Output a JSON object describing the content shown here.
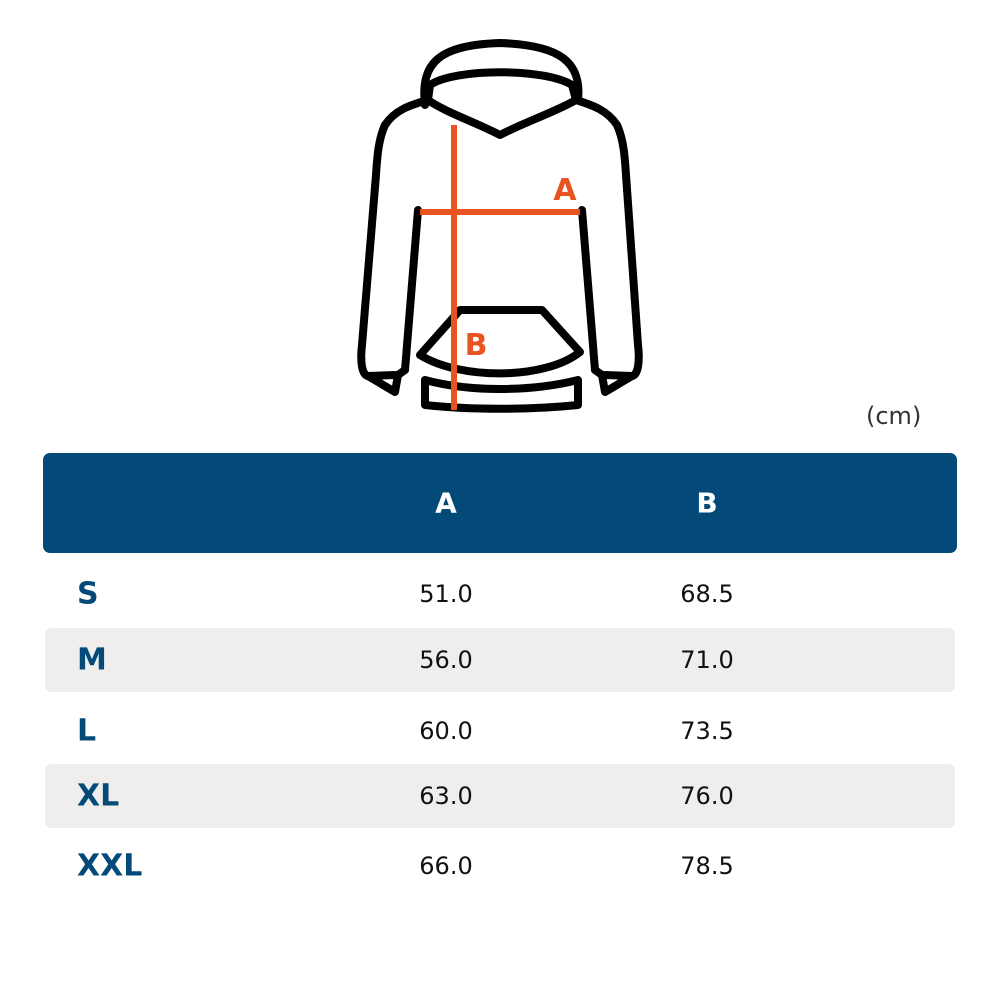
{
  "diagram": {
    "labels": [
      "A",
      "B"
    ]
  },
  "unit": "(cm)",
  "table": {
    "columns": [
      "A",
      "B"
    ],
    "rows": [
      [
        "S",
        "51.0",
        "68.5"
      ],
      [
        "M",
        "56.0",
        "71.0"
      ],
      [
        "L",
        "60.0",
        "73.5"
      ],
      [
        "XL",
        "63.0",
        "76.0"
      ],
      [
        "XXL",
        "66.0",
        "78.5"
      ]
    ]
  }
}
